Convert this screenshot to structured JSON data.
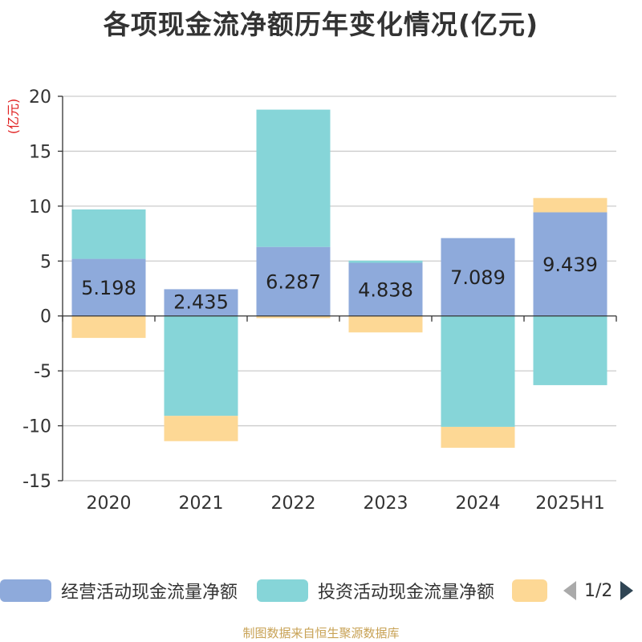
{
  "title": "各项现金流净额历年变化情况(亿元)",
  "source_note": "制图数据来自恒生聚源数据库",
  "legend": {
    "items": [
      {
        "label": "经营活动现金流量净额",
        "color": "#8eaadb"
      },
      {
        "label": "投资活动现金流量净额",
        "color": "#86d5d8"
      },
      {
        "label": "",
        "color": "#fdd895"
      }
    ],
    "page_indicator": "1/2"
  },
  "chart_data": {
    "type": "bar",
    "stacked": true,
    "categories": [
      "2020",
      "2021",
      "2022",
      "2023",
      "2024",
      "2025H1"
    ],
    "series": [
      {
        "name": "经营活动现金流量净额",
        "color": "#8eaadb",
        "values": [
          5.198,
          2.435,
          6.287,
          4.838,
          7.089,
          9.439
        ],
        "data_labels": [
          "5.198",
          "2.435",
          "6.287",
          "4.838",
          "7.089",
          "9.439"
        ]
      },
      {
        "name": "投资活动现金流量净额",
        "color": "#86d5d8",
        "values": [
          4.5,
          -9.1,
          12.5,
          0.2,
          -10.1,
          -6.3
        ]
      },
      {
        "color": "#fdd895",
        "values": [
          -2.0,
          -2.3,
          -0.2,
          -1.5,
          -1.9,
          1.3
        ]
      }
    ],
    "xlabel": "",
    "ylabel": "(亿元)",
    "ylim": [
      -15,
      20
    ],
    "yticks": [
      20,
      15,
      10,
      5,
      0,
      -5,
      -10,
      -15
    ],
    "grid": true,
    "legend_position": "bottom"
  }
}
